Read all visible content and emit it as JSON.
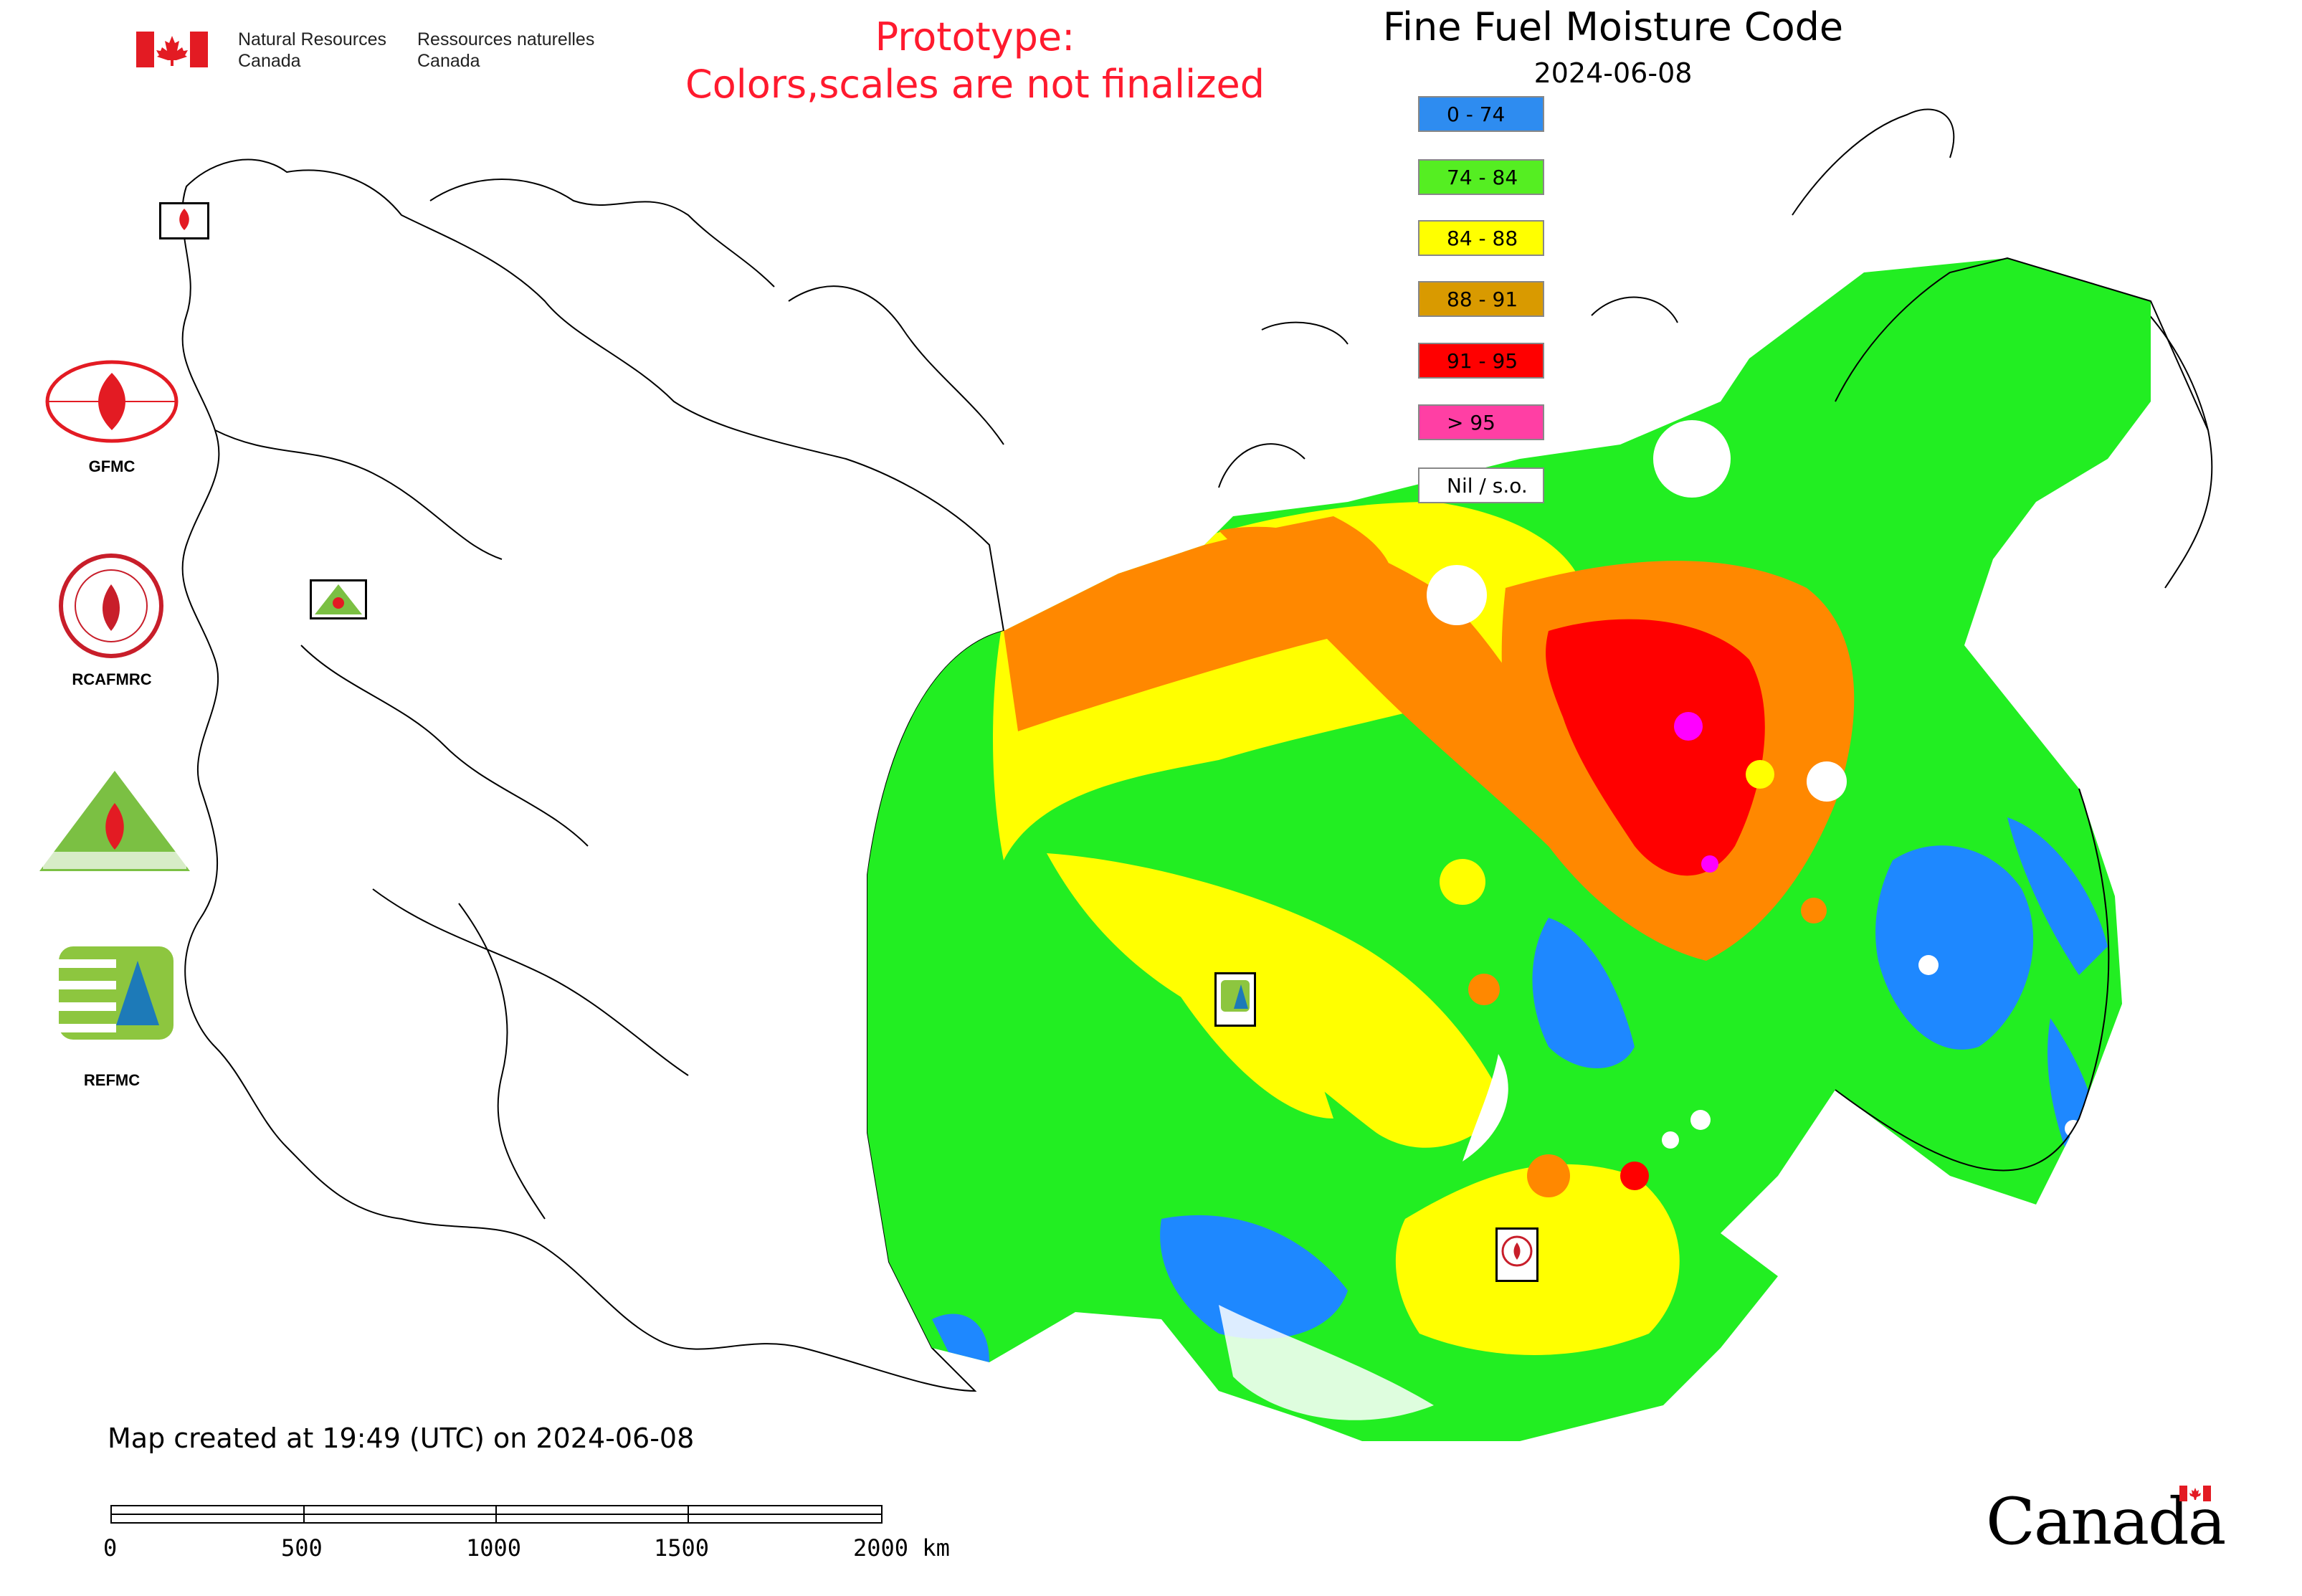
{
  "header": {
    "title": "Fine Fuel Moisture Code",
    "date": "2024-06-08",
    "prototype_line1": "Prototype:",
    "prototype_line2": "Colors,scales are not finalized",
    "nrcan_en_line1": "Natural Resources",
    "nrcan_en_line2": "Canada",
    "nrcan_fr_line1": "Ressources naturelles",
    "nrcan_fr_line2": "Canada"
  },
  "legend": [
    {
      "label": "0 - 74",
      "color": "#2e8cf0"
    },
    {
      "label": "74 - 84",
      "color": "#55ee22"
    },
    {
      "label": "84 - 88",
      "color": "#ffff00"
    },
    {
      "label": "88 - 91",
      "color": "#d99a00"
    },
    {
      "label": "91 - 95",
      "color": "#ff0000"
    },
    {
      "label": "> 95",
      "color": "#ff3fa4"
    },
    {
      "label": "Nil / s.o.",
      "color": "#ffffff"
    }
  ],
  "logos": {
    "gfmc": "GFMC",
    "rcafmrc": "RCAFMRC",
    "reefmc": "REEFMC",
    "refmc": "REFMC",
    "map_mark_gfmc": "GFMC",
    "map_mark_reefmc": "REEFMC",
    "map_mark_refmc": "REFMC",
    "map_mark_rcafmrc": "RCAFMRC"
  },
  "footer": {
    "created": "Map created at 19:49 (UTC) on 2024-06-08",
    "scale_labels": [
      "0",
      "500",
      "1000",
      "1500",
      "2000 km"
    ],
    "wordmark": "Canada"
  },
  "map": {
    "colors": {
      "green": "#22ee22",
      "yellow": "#ffff00",
      "orange": "#ff8800",
      "red": "#ff0000",
      "blue": "#1e88ff",
      "magenta": "#ff00ff"
    }
  }
}
